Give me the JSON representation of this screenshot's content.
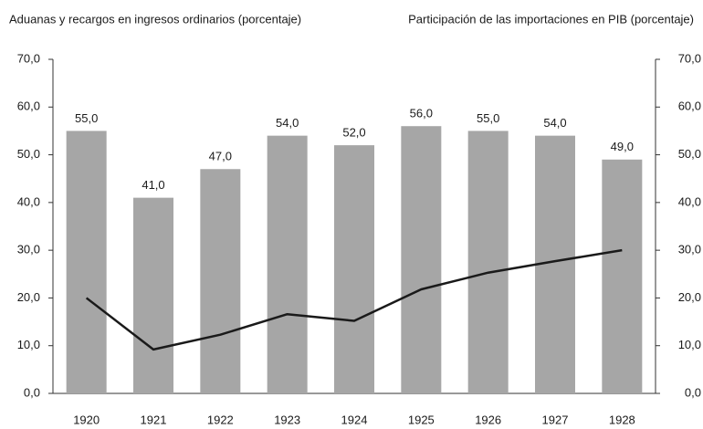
{
  "chart_data": {
    "type": "bar_line",
    "y_label": "Aduanas y recargos en ingresos ordinarios (porcentaje)",
    "y2_label": "Participación de las importaciones en PIB (porcentaje)",
    "categories": [
      "1920",
      "1921",
      "1922",
      "1923",
      "1924",
      "1925",
      "1926",
      "1927",
      "1928"
    ],
    "series": [
      {
        "type": "bar",
        "color": "#a6a6a6",
        "values": [
          55,
          41,
          47,
          54,
          52,
          56,
          55,
          54,
          49
        ],
        "value_labels": [
          "55,0",
          "41,0",
          "47,0",
          "54,0",
          "52,0",
          "56,0",
          "55,0",
          "54,0",
          "49,0"
        ]
      },
      {
        "type": "line",
        "axis": "y2",
        "color": "#1a1a1a",
        "values": [
          20,
          9.2,
          12.3,
          16.6,
          15.2,
          21.8,
          25.3,
          27.7,
          30
        ]
      }
    ],
    "ylim": [
      0,
      70
    ],
    "yticks": [
      {
        "value": 0,
        "label": "0,0"
      },
      {
        "value": 10,
        "label": "10,0"
      },
      {
        "value": 20,
        "label": "20,0"
      },
      {
        "value": 30,
        "label": "30,0"
      },
      {
        "value": 40,
        "label": "40,0"
      },
      {
        "value": 50,
        "label": "50,0"
      },
      {
        "value": 60,
        "label": "60,0"
      },
      {
        "value": 70,
        "label": "70,0"
      }
    ],
    "y2lim": [
      0,
      70
    ],
    "y2ticks": [
      {
        "value": 0,
        "label": "0,0"
      },
      {
        "value": 10,
        "label": "10,0"
      },
      {
        "value": 20,
        "label": "20,0"
      },
      {
        "value": 30,
        "label": "30,0"
      },
      {
        "value": 40,
        "label": "40,0"
      },
      {
        "value": 50,
        "label": "50,0"
      },
      {
        "value": 60,
        "label": "60,0"
      },
      {
        "value": 70,
        "label": "70,0"
      }
    ]
  }
}
